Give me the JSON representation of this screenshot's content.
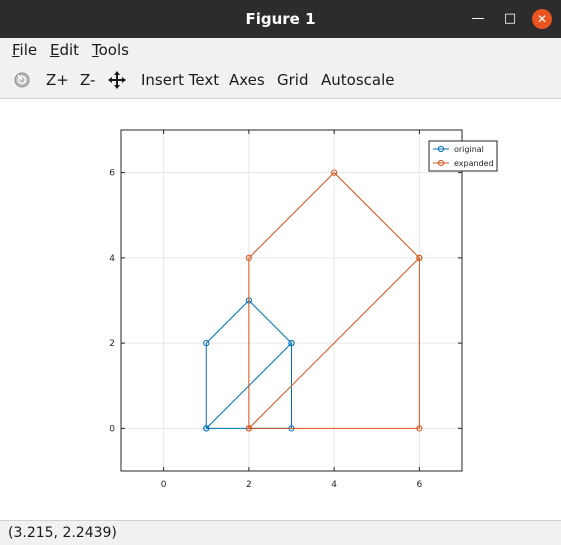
{
  "window": {
    "title": "Figure 1"
  },
  "menu": {
    "items": [
      "File",
      "Edit",
      "Tools"
    ]
  },
  "toolbar": {
    "zoom_in": "Z+",
    "zoom_out": "Z-",
    "insert_text": "Insert Text",
    "axes": "Axes",
    "grid": "Grid",
    "autoscale": "Autoscale"
  },
  "status": {
    "coordinates": "(3.215, 2.2439)"
  },
  "colors": {
    "original": "#0072bd",
    "expanded": "#d95319"
  },
  "chart_data": {
    "type": "line",
    "xlim": [
      -1,
      7
    ],
    "ylim": [
      -1,
      7
    ],
    "xticks": [
      0,
      2,
      4,
      6
    ],
    "yticks": [
      0,
      2,
      4,
      6
    ],
    "grid": true,
    "legend_position": "top-right",
    "series": [
      {
        "name": "original",
        "x": [
          1,
          3,
          3,
          2,
          1,
          1,
          3
        ],
        "y": [
          0,
          0,
          2,
          3,
          2,
          0,
          2
        ],
        "marker": "circle"
      },
      {
        "name": "expanded",
        "x": [
          2,
          6,
          6,
          4,
          2,
          2,
          6
        ],
        "y": [
          0,
          0,
          4,
          6,
          4,
          0,
          4
        ],
        "marker": "circle"
      }
    ]
  }
}
